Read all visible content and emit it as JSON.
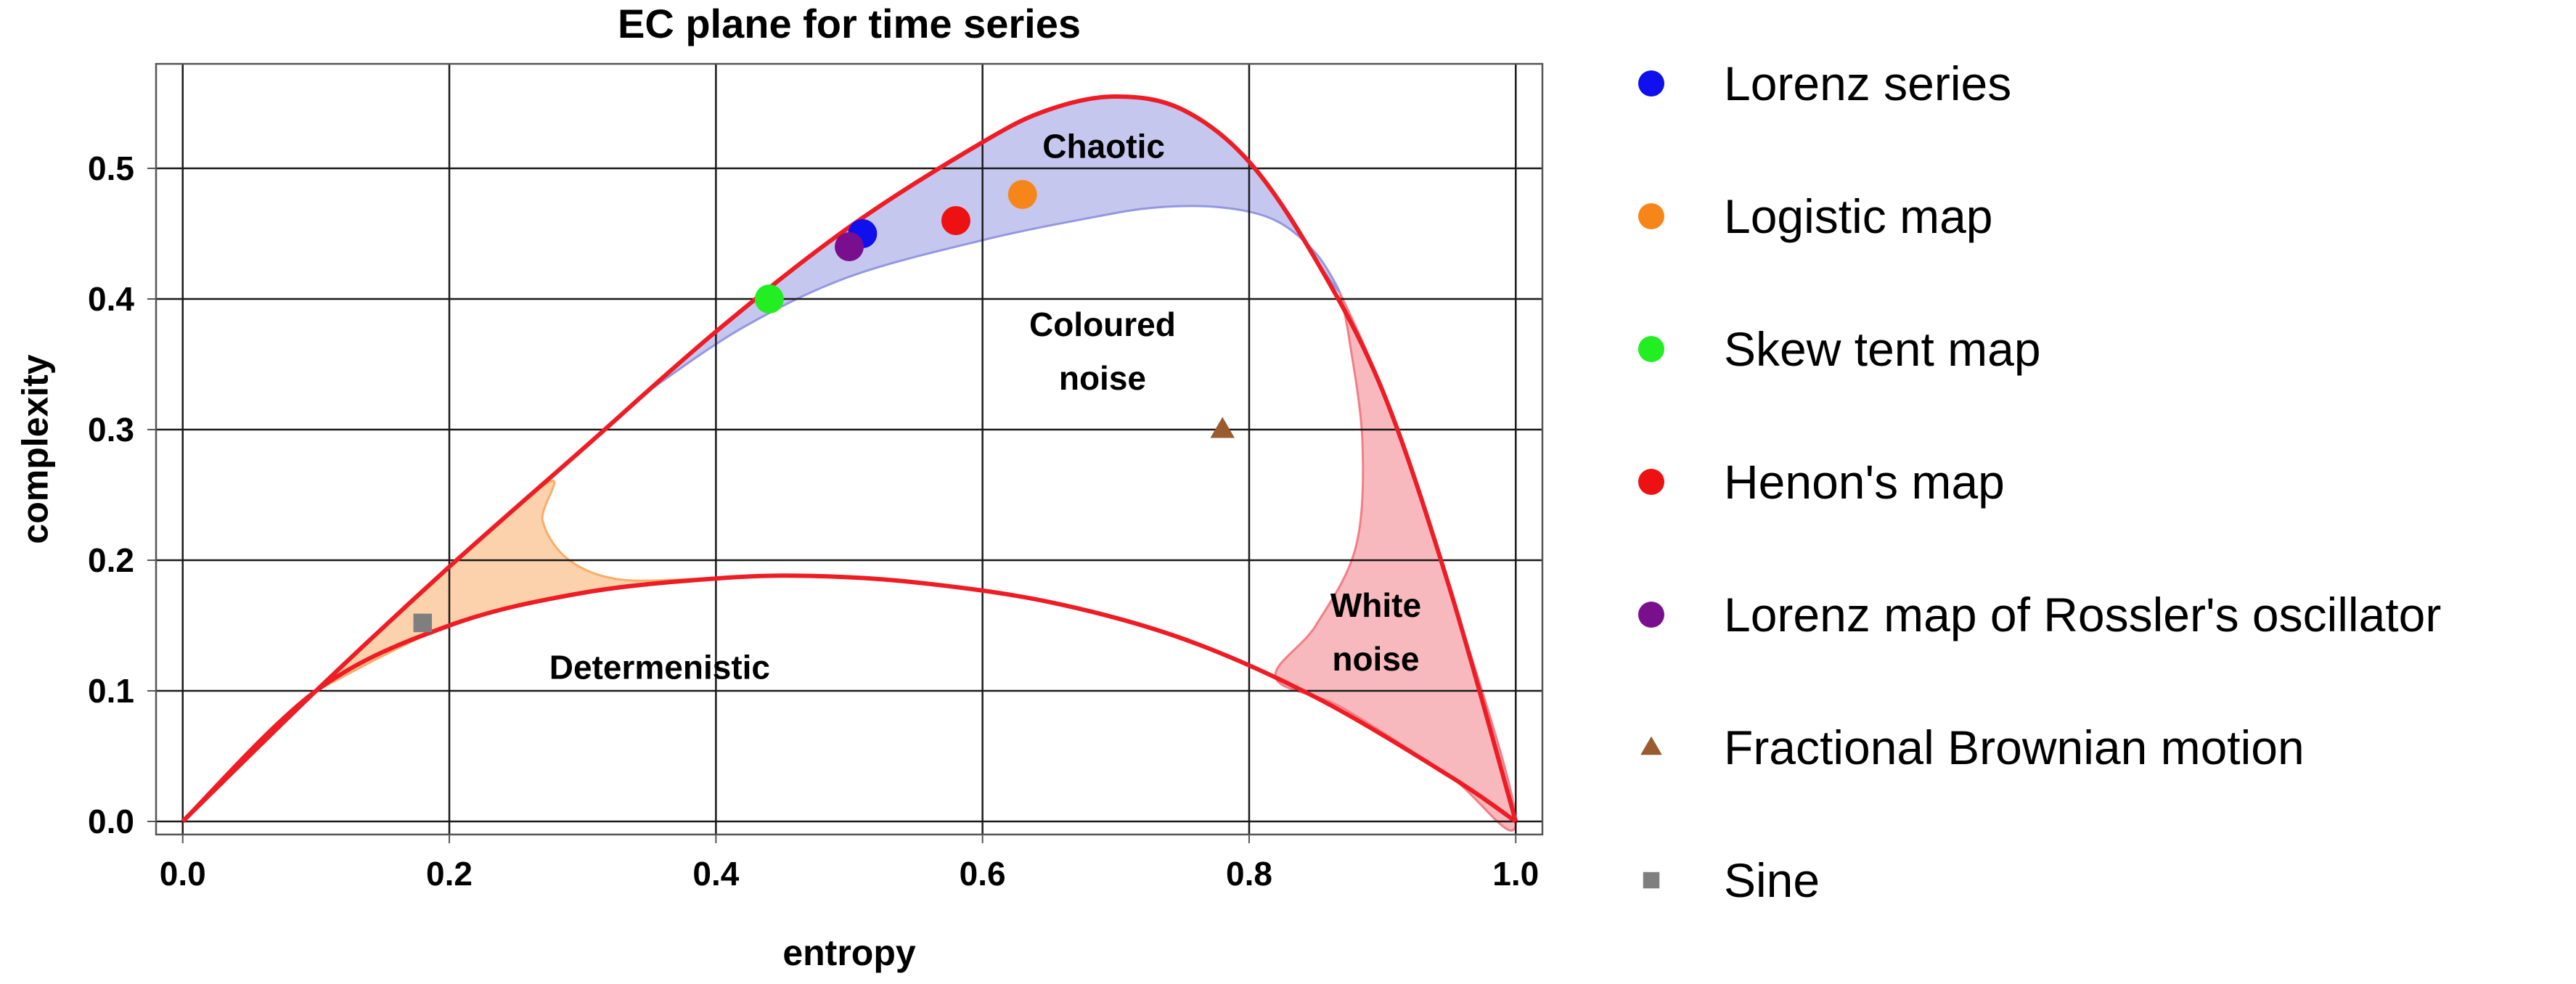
{
  "chart_data": {
    "type": "scatter",
    "title": "EC plane for time series",
    "xlabel": "entropy",
    "ylabel": "complexity",
    "xlim": [
      -0.02,
      1.02
    ],
    "ylim": [
      -0.01,
      0.58
    ],
    "grid": true,
    "legend_position": "right",
    "xticks": [
      {
        "value": 0.0,
        "label": "0.0"
      },
      {
        "value": 0.2,
        "label": "0.2"
      },
      {
        "value": 0.4,
        "label": "0.4"
      },
      {
        "value": 0.6,
        "label": "0.6"
      },
      {
        "value": 0.8,
        "label": "0.8"
      },
      {
        "value": 1.0,
        "label": "1.0"
      }
    ],
    "yticks": [
      {
        "value": 0.0,
        "label": "0.0"
      },
      {
        "value": 0.1,
        "label": "0.1"
      },
      {
        "value": 0.2,
        "label": "0.2"
      },
      {
        "value": 0.3,
        "label": "0.3"
      },
      {
        "value": 0.4,
        "label": "0.4"
      },
      {
        "value": 0.5,
        "label": "0.5"
      }
    ],
    "boundary_curves": {
      "color": "#ee1c24",
      "upper": [
        [
          0.0,
          0.0
        ],
        [
          0.1,
          0.1
        ],
        [
          0.2,
          0.195
        ],
        [
          0.3,
          0.285
        ],
        [
          0.4,
          0.375
        ],
        [
          0.5,
          0.455
        ],
        [
          0.6,
          0.52
        ],
        [
          0.65,
          0.545
        ],
        [
          0.7,
          0.555
        ],
        [
          0.75,
          0.545
        ],
        [
          0.8,
          0.505
        ],
        [
          0.85,
          0.43
        ],
        [
          0.9,
          0.33
        ],
        [
          0.95,
          0.18
        ],
        [
          1.0,
          0.0
        ]
      ],
      "lower": [
        [
          0.0,
          0.0
        ],
        [
          0.1,
          0.1
        ],
        [
          0.2,
          0.15
        ],
        [
          0.3,
          0.175
        ],
        [
          0.4,
          0.186
        ],
        [
          0.47,
          0.188
        ],
        [
          0.55,
          0.183
        ],
        [
          0.65,
          0.168
        ],
        [
          0.75,
          0.14
        ],
        [
          0.85,
          0.095
        ],
        [
          0.95,
          0.035
        ],
        [
          1.0,
          0.0
        ]
      ]
    },
    "regions": [
      {
        "name": "Chaotic",
        "label": "Chaotic",
        "color": "#8c8fdf",
        "polygon": [
          [
            0.35,
            0.33
          ],
          [
            0.4,
            0.375
          ],
          [
            0.5,
            0.455
          ],
          [
            0.6,
            0.52
          ],
          [
            0.65,
            0.545
          ],
          [
            0.7,
            0.555
          ],
          [
            0.75,
            0.545
          ],
          [
            0.8,
            0.505
          ],
          [
            0.85,
            0.43
          ],
          [
            0.868,
            0.405
          ],
          [
            0.85,
            0.435
          ],
          [
            0.82,
            0.46
          ],
          [
            0.78,
            0.47
          ],
          [
            0.73,
            0.47
          ],
          [
            0.68,
            0.462
          ],
          [
            0.6,
            0.445
          ],
          [
            0.5,
            0.417
          ],
          [
            0.42,
            0.378
          ],
          [
            0.35,
            0.33
          ]
        ],
        "label_pos": [
          0.645,
          0.517
        ]
      },
      {
        "name": "Determenistic",
        "label": "Determenistic",
        "color": "#f9a65a",
        "polygon": [
          [
            0.1,
            0.1
          ],
          [
            0.2,
            0.195
          ],
          [
            0.275,
            0.26
          ],
          [
            0.27,
            0.23
          ],
          [
            0.29,
            0.2
          ],
          [
            0.33,
            0.185
          ],
          [
            0.4,
            0.186
          ],
          [
            0.3,
            0.175
          ],
          [
            0.2,
            0.15
          ],
          [
            0.1,
            0.1
          ]
        ],
        "label_pos": [
          0.275,
          0.118
        ]
      },
      {
        "name": "White noise",
        "label_lines": [
          "White",
          "noise"
        ],
        "color": "#f0747c",
        "polygon": [
          [
            0.868,
            0.405
          ],
          [
            0.9,
            0.33
          ],
          [
            0.95,
            0.18
          ],
          [
            1.0,
            0.0
          ],
          [
            0.95,
            0.035
          ],
          [
            0.87,
            0.087
          ],
          [
            0.82,
            0.11
          ],
          [
            0.85,
            0.15
          ],
          [
            0.88,
            0.21
          ],
          [
            0.885,
            0.29
          ],
          [
            0.875,
            0.37
          ],
          [
            0.868,
            0.405
          ]
        ],
        "label_pos": [
          0.895,
          0.145
        ]
      },
      {
        "name": "Coloured noise",
        "label_lines": [
          "Coloured",
          "noise"
        ],
        "label_pos": [
          0.69,
          0.36
        ]
      }
    ],
    "series": [
      {
        "name": "Lorenz series",
        "marker": "circle",
        "color": "#1010ee",
        "x": [
          0.51
        ],
        "y": [
          0.45
        ]
      },
      {
        "name": "Logistic map",
        "marker": "circle",
        "color": "#f7861a",
        "x": [
          0.63
        ],
        "y": [
          0.48
        ]
      },
      {
        "name": "Skew tent map",
        "marker": "circle",
        "color": "#22ee22",
        "x": [
          0.44
        ],
        "y": [
          0.4
        ]
      },
      {
        "name": "Henon's map",
        "marker": "circle",
        "color": "#ee1111",
        "x": [
          0.58
        ],
        "y": [
          0.46
        ]
      },
      {
        "name": "Lorenz map of Rossler's oscillator",
        "marker": "circle",
        "color": "#7a0f8e",
        "x": [
          0.5
        ],
        "y": [
          0.44
        ]
      },
      {
        "name": "Fractional Brownian motion",
        "marker": "triangle",
        "color": "#9a5b2e",
        "x": [
          0.78
        ],
        "y": [
          0.3
        ]
      },
      {
        "name": "Sine",
        "marker": "square",
        "color": "#7f7f7f",
        "x": [
          0.18
        ],
        "y": [
          0.152
        ]
      }
    ]
  }
}
